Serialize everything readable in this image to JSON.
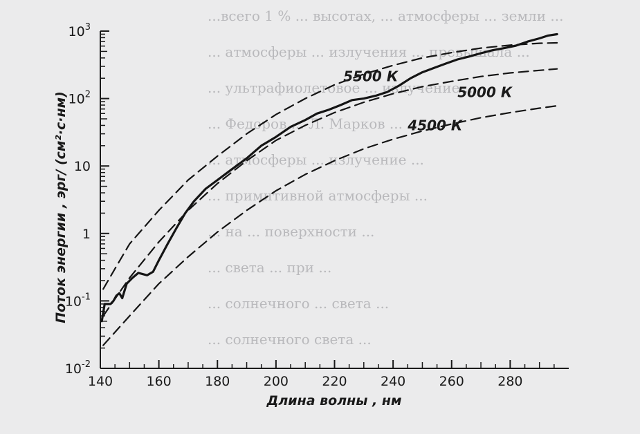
{
  "background_text": [
    "...всего 1 % ... высотах, ... атмосферы ... земли ...",
    "... атмосферы ... излучения ... превышала ...",
    "... ультрафиолетовое ... излучение ...",
    "... Федоров ... Л. Марков ...",
    "... атмосферы ... излучение ...",
    "... примитивной атмосферы ...",
    "... на ... поверхности ...",
    "... света ... при ...",
    "... солнечного ... света ...",
    "... солнечного света ..."
  ],
  "chart_data": {
    "type": "line",
    "xlabel": "Длина волны , нм",
    "ylabel": "Поток энергии , эрг/ (см²·с·нм)",
    "xlim": [
      140,
      300
    ],
    "ylim": [
      0.01,
      1000
    ],
    "yscale": "log",
    "grid": false,
    "x_ticks": [
      "140",
      "160",
      "180",
      "200",
      "220",
      "240",
      "260",
      "280"
    ],
    "y_ticks": [
      {
        "base": "10",
        "exp": "3",
        "value": 1000
      },
      {
        "base": "10",
        "exp": "2",
        "value": 100
      },
      {
        "base": "10",
        "exp": "",
        "value": 10
      },
      {
        "base": "1",
        "exp": "",
        "value": 1
      },
      {
        "base": "10",
        "exp": "-1",
        "value": 0.1
      },
      {
        "base": "10",
        "exp": "-2",
        "value": 0.01
      }
    ],
    "series": [
      {
        "name": "5500 К",
        "style": "dashed",
        "x": [
          141,
          145,
          150,
          160,
          170,
          180,
          190,
          200,
          210,
          220,
          230,
          240,
          250,
          260,
          270,
          280,
          290,
          296
        ],
        "y": [
          0.15,
          0.3,
          0.7,
          2.2,
          6.2,
          14,
          30,
          58,
          100,
          160,
          230,
          310,
          400,
          480,
          560,
          620,
          660,
          670
        ]
      },
      {
        "name": "5000 К",
        "style": "dashed",
        "x": [
          141,
          150,
          160,
          170,
          180,
          190,
          200,
          210,
          220,
          230,
          240,
          250,
          260,
          270,
          280,
          290,
          296
        ],
        "y": [
          0.06,
          0.22,
          0.75,
          2.2,
          5.5,
          12,
          24,
          40,
          62,
          88,
          118,
          150,
          180,
          212,
          240,
          262,
          275
        ]
      },
      {
        "name": "4500 К",
        "style": "dashed",
        "x": [
          141,
          150,
          160,
          170,
          180,
          190,
          200,
          210,
          220,
          230,
          240,
          250,
          260,
          270,
          280,
          290,
          296
        ],
        "y": [
          0.022,
          0.06,
          0.18,
          0.45,
          1.05,
          2.2,
          4.3,
          7.5,
          12,
          18,
          25,
          33,
          42,
          52,
          62,
          72,
          78
        ]
      },
      {
        "name": "",
        "style": "solid",
        "x": [
          140.5,
          141.5,
          142.5,
          143.5,
          144.5,
          145.5,
          146.5,
          147.5,
          149,
          151,
          153,
          156,
          158,
          160,
          163,
          166,
          169,
          172,
          176,
          180,
          185,
          190,
          195,
          200,
          205,
          210,
          214,
          218,
          222,
          226,
          230,
          234,
          238,
          242,
          246,
          250,
          254,
          258,
          262,
          266,
          270,
          274,
          278,
          282,
          286,
          290,
          293,
          296
        ],
        "y": [
          0.05,
          0.09,
          0.09,
          0.09,
          0.1,
          0.12,
          0.13,
          0.11,
          0.18,
          0.22,
          0.26,
          0.24,
          0.27,
          0.4,
          0.7,
          1.2,
          2.0,
          3.0,
          4.6,
          6.2,
          9.0,
          13,
          20,
          27,
          38,
          48,
          60,
          68,
          80,
          95,
          100,
          110,
          125,
          155,
          200,
          245,
          285,
          330,
          380,
          420,
          470,
          520,
          560,
          610,
          700,
          780,
          860,
          900
        ]
      }
    ]
  }
}
